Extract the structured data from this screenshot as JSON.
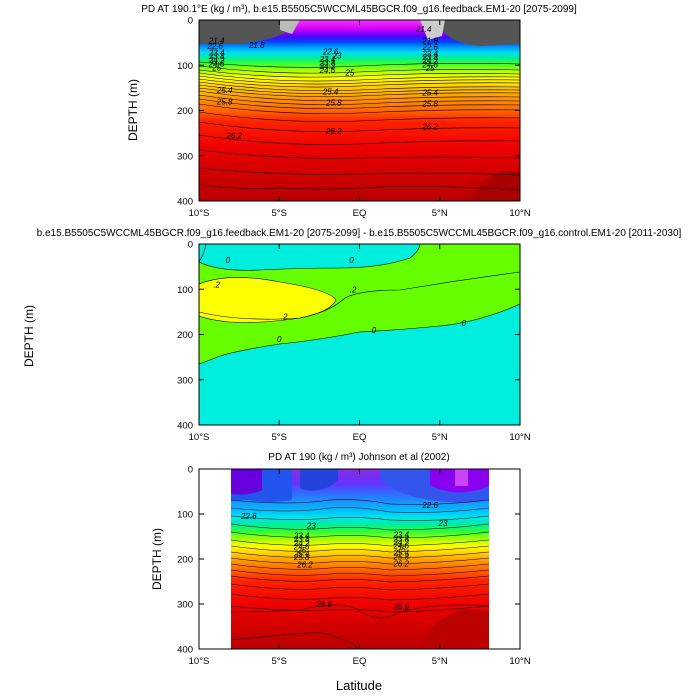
{
  "figure": {
    "xlabel": "Latitude"
  },
  "chart_data": [
    {
      "type": "contour",
      "title": "PD AT 190.1°E (kg / m³), b.e15.B5505C5WCCML45BGCR.f09_g16.feedback.EM1-20 [2075-2099]",
      "ylabel": "DEPTH (m)",
      "x_ticks": [
        "10°S",
        "5°S",
        "EQ",
        "5°N",
        "10°N"
      ],
      "y_ticks": [
        "0",
        "100",
        "200",
        "300",
        "400"
      ],
      "xlim": [
        -10,
        10
      ],
      "ylim": [
        400,
        0
      ],
      "contour_labels": [
        {
          "text": "21.4",
          "lat": -8.9,
          "depth": 45
        },
        {
          "text": "22.6",
          "lat": -9.0,
          "depth": 58
        },
        {
          "text": "21.8",
          "lat": -6.4,
          "depth": 55
        },
        {
          "text": "23.4",
          "lat": -8.9,
          "depth": 72
        },
        {
          "text": "23.8",
          "lat": -8.9,
          "depth": 80
        },
        {
          "text": "24.2",
          "lat": -8.9,
          "depth": 88
        },
        {
          "text": "24.6",
          "lat": -8.9,
          "depth": 96
        },
        {
          "text": "25",
          "lat": -8.9,
          "depth": 105
        },
        {
          "text": "22.6",
          "lat": -1.8,
          "depth": 70
        },
        {
          "text": "23",
          "lat": -1.4,
          "depth": 78
        },
        {
          "text": "23.4",
          "lat": -2.0,
          "depth": 86
        },
        {
          "text": "23.8",
          "lat": -2.0,
          "depth": 94
        },
        {
          "text": "24.2",
          "lat": -2.0,
          "depth": 102
        },
        {
          "text": "24.6",
          "lat": -2.0,
          "depth": 110
        },
        {
          "text": "25",
          "lat": -0.6,
          "depth": 116
        },
        {
          "text": "21.8",
          "lat": 4.4,
          "depth": 45
        },
        {
          "text": "22.6",
          "lat": 4.4,
          "depth": 60
        },
        {
          "text": "23.4",
          "lat": 4.4,
          "depth": 74
        },
        {
          "text": "23.8",
          "lat": 4.4,
          "depth": 82
        },
        {
          "text": "24.2",
          "lat": 4.4,
          "depth": 90
        },
        {
          "text": "24.6",
          "lat": 4.4,
          "depth": 98
        },
        {
          "text": "25",
          "lat": 4.4,
          "depth": 106
        },
        {
          "text": "25.4",
          "lat": -8.4,
          "depth": 155
        },
        {
          "text": "25.8",
          "lat": -8.4,
          "depth": 180
        },
        {
          "text": "25.4",
          "lat": -1.8,
          "depth": 158
        },
        {
          "text": "25.8",
          "lat": -1.6,
          "depth": 182
        },
        {
          "text": "25.4",
          "lat": 4.4,
          "depth": 160
        },
        {
          "text": "25.8",
          "lat": 4.4,
          "depth": 185
        },
        {
          "text": "26.2",
          "lat": -7.8,
          "depth": 255
        },
        {
          "text": "26.2",
          "lat": -1.6,
          "depth": 245
        },
        {
          "text": "26.2",
          "lat": 4.4,
          "depth": 235
        },
        {
          "text": "21.4",
          "lat": 4.0,
          "depth": 20
        }
      ]
    },
    {
      "type": "contour",
      "title": "b.e15.B5505C5WCCML45BGCR.f09_g16.feedback.EM1-20 [2075-2099] - b.e15.B5505C5WCCML45BGCR.f09_g16.control.EM1-20 [2011-2030]",
      "ylabel": "DEPTH (m)",
      "x_ticks": [
        "10°S",
        "5°S",
        "EQ",
        "5°N",
        "10°N"
      ],
      "y_ticks": [
        "0",
        "100",
        "200",
        "300",
        "400"
      ],
      "xlim": [
        -10,
        10
      ],
      "ylim": [
        400,
        0
      ],
      "levels": [
        0,
        0.2
      ],
      "contour_labels": [
        {
          "text": "0",
          "lat": -8.2,
          "depth": 35
        },
        {
          "text": "0",
          "lat": -0.5,
          "depth": 35
        },
        {
          "text": ".2",
          "lat": -8.9,
          "depth": 90
        },
        {
          "text": ".2",
          "lat": -0.4,
          "depth": 100
        },
        {
          "text": ".2",
          "lat": -4.7,
          "depth": 160
        },
        {
          "text": "0",
          "lat": 0.9,
          "depth": 190
        },
        {
          "text": "0",
          "lat": 6.5,
          "depth": 175
        },
        {
          "text": "0",
          "lat": -5.0,
          "depth": 210
        }
      ]
    },
    {
      "type": "contour",
      "title": "PD AT 190 (kg / m³) Johnson et al (2002)",
      "ylabel": "DEPTH (m)",
      "x_ticks": [
        "10°S",
        "5°S",
        "EQ",
        "5°N",
        "10°N"
      ],
      "y_ticks": [
        "0",
        "100",
        "200",
        "300",
        "400"
      ],
      "xlim": [
        -10,
        10
      ],
      "ylim": [
        400,
        0
      ],
      "data_lat_range": [
        -8,
        8
      ],
      "contour_labels": [
        {
          "text": "22.6",
          "lat": -6.9,
          "depth": 104
        },
        {
          "text": "23",
          "lat": -3.0,
          "depth": 125
        },
        {
          "text": "23.4",
          "lat": -3.6,
          "depth": 148
        },
        {
          "text": "23.8",
          "lat": -3.6,
          "depth": 156
        },
        {
          "text": "24.2",
          "lat": -3.6,
          "depth": 164
        },
        {
          "text": "24.6",
          "lat": -3.6,
          "depth": 172
        },
        {
          "text": "25",
          "lat": -3.6,
          "depth": 180
        },
        {
          "text": "25.4",
          "lat": -3.6,
          "depth": 188
        },
        {
          "text": "25.8",
          "lat": -3.6,
          "depth": 196
        },
        {
          "text": "26.2",
          "lat": -3.4,
          "depth": 212
        },
        {
          "text": "22.6",
          "lat": 4.4,
          "depth": 80
        },
        {
          "text": "23",
          "lat": 5.2,
          "depth": 120
        },
        {
          "text": "23.4",
          "lat": 2.6,
          "depth": 146
        },
        {
          "text": "23.8",
          "lat": 2.6,
          "depth": 154
        },
        {
          "text": "24.2",
          "lat": 2.6,
          "depth": 162
        },
        {
          "text": "24.6",
          "lat": 2.6,
          "depth": 170
        },
        {
          "text": "25",
          "lat": 2.6,
          "depth": 178
        },
        {
          "text": "25.4",
          "lat": 2.6,
          "depth": 186
        },
        {
          "text": "25.8",
          "lat": 2.6,
          "depth": 194
        },
        {
          "text": "26.2",
          "lat": 2.6,
          "depth": 210
        },
        {
          "text": "26.6",
          "lat": -2.2,
          "depth": 300
        },
        {
          "text": "26.6",
          "lat": 2.6,
          "depth": 305
        }
      ]
    }
  ]
}
